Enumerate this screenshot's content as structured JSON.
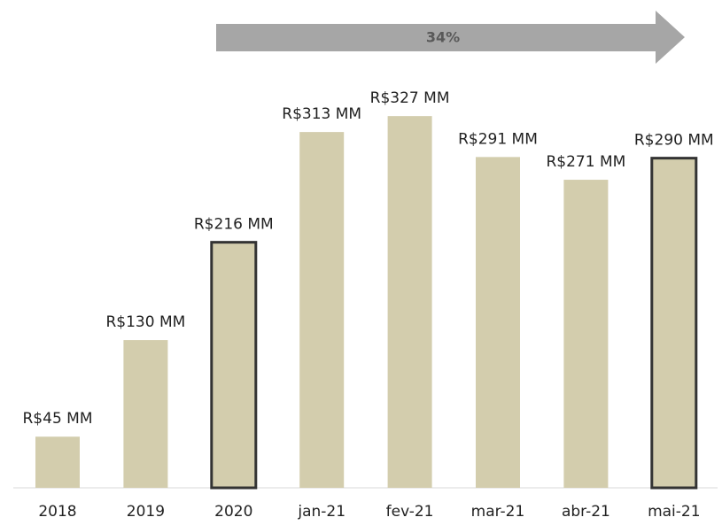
{
  "chart_data": {
    "type": "bar",
    "categories": [
      "2018",
      "2019",
      "2020",
      "jan-21",
      "fev-21",
      "mar-21",
      "abr-21",
      "mai-21"
    ],
    "values": [
      45,
      130,
      216,
      313,
      327,
      291,
      271,
      290
    ],
    "value_labels": [
      "R$45 MM",
      "R$130 MM",
      "R$216 MM",
      "R$313 MM",
      "R$327 MM",
      "R$291 MM",
      "R$271 MM",
      "R$290 MM"
    ],
    "color": "#d3cdad",
    "outline": [
      false,
      false,
      true,
      false,
      false,
      false,
      false,
      true
    ],
    "outline_color": "#333333",
    "annotation": {
      "text": "34%",
      "color": "#a6a6a6"
    }
  }
}
